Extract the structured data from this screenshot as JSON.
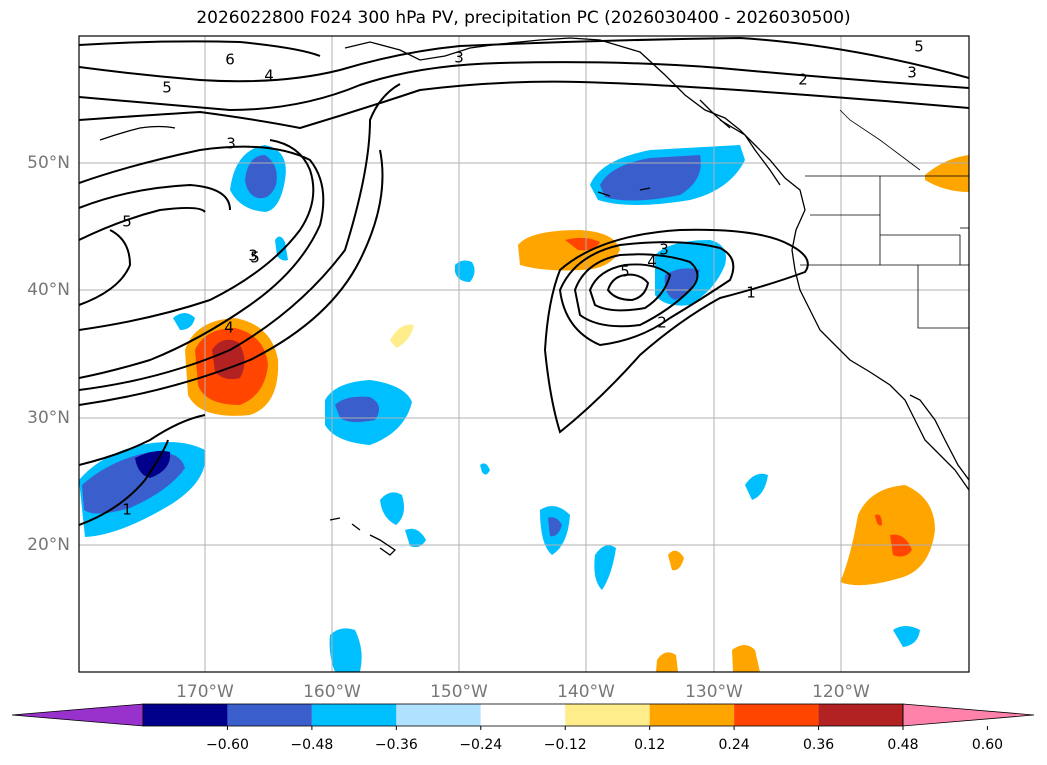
{
  "title": "2026022800 F024 300 hPa PV, precipitation PC (2026030400 - 2026030500)",
  "lat_labels": [
    "50°N",
    "40°N",
    "30°N",
    "20°N"
  ],
  "lon_labels": [
    "170°W",
    "160°W",
    "150°W",
    "140°W",
    "130°W",
    "120°W"
  ],
  "colorbar": {
    "ticks": [
      "−0.60",
      "−0.48",
      "−0.36",
      "−0.24",
      "−0.12",
      "0.12",
      "0.24",
      "0.36",
      "0.48",
      "0.60"
    ],
    "colors": [
      "#9932cc",
      "#00008b",
      "#3a5fcd",
      "#00bfff",
      "#b0e2ff",
      "#ffffff",
      "#ffec8b",
      "#ffa500",
      "#ff4500",
      "#b22222",
      "#ff82ab"
    ]
  },
  "contour_labels": [
    "6",
    "5",
    "4",
    "3",
    "3",
    "5",
    "3",
    "2",
    "3",
    "5",
    "5",
    "4",
    "3",
    "5",
    "4",
    "2",
    "1",
    "1"
  ]
}
